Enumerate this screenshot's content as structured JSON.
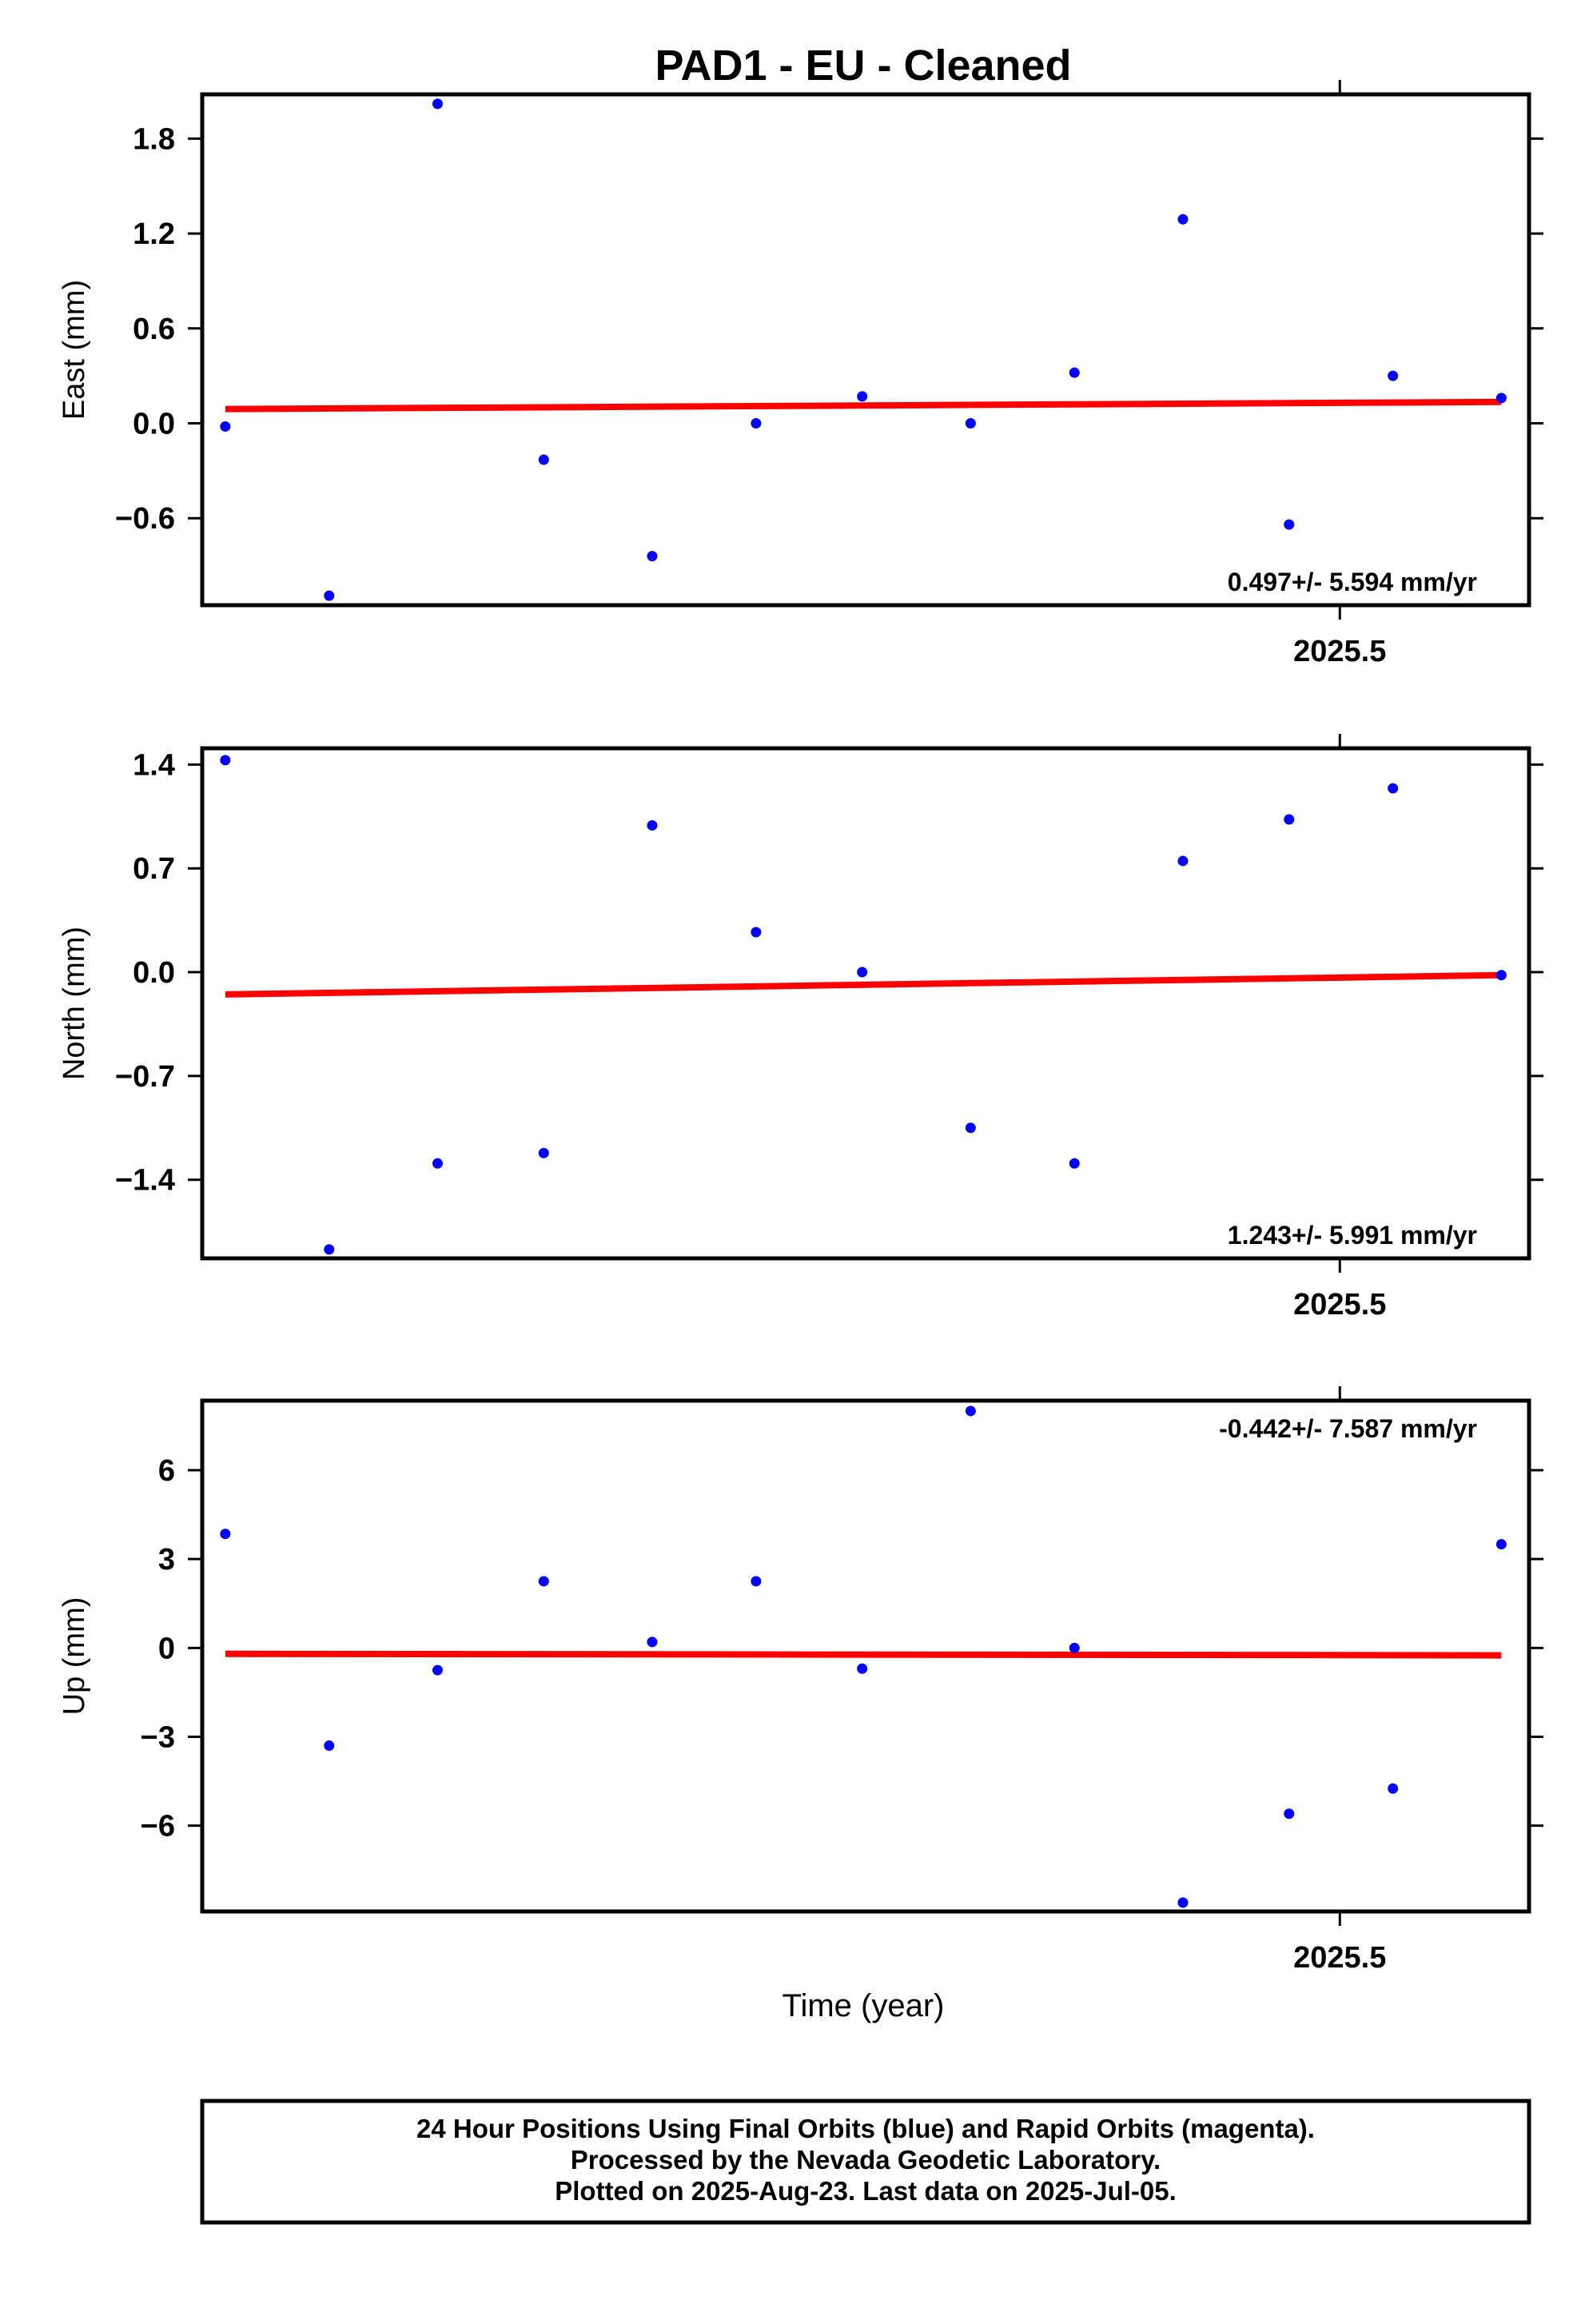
{
  "title": "PAD1  - EU - Cleaned",
  "x_axis_label": "Time (year)",
  "footer": {
    "line1": "24 Hour Positions Using Final Orbits (blue) and Rapid Orbits (magenta).",
    "line2": "Processed by the Nevada Geodetic Laboratory.",
    "line3": "Plotted on 2025-Aug-23. Last data on 2025-Jul-05."
  },
  "colors": {
    "points": "#0000ff",
    "trend": "#ff0000",
    "frame": "#000000"
  },
  "chart_data": [
    {
      "type": "scatter",
      "ylabel": "East (mm)",
      "xlim": [
        2025.4507,
        2025.5082
      ],
      "ylim": [
        -1.15,
        2.08
      ],
      "yticks": [
        "1.8",
        "1.2",
        "0.6",
        "0.0",
        "−0.6"
      ],
      "xticks": [
        "2025.5"
      ],
      "rate_label": "0.497+/- 5.594 mm/yr",
      "rate_position": "bottom-right",
      "x": [
        2025.4517,
        2025.4562,
        2025.4609,
        2025.4655,
        2025.4702,
        2025.4747,
        2025.4793,
        2025.484,
        2025.4885,
        2025.4932,
        2025.4978,
        2025.5023,
        2025.507
      ],
      "values": [
        -0.02,
        -1.09,
        2.02,
        -0.23,
        -0.84,
        0.0,
        0.17,
        0.0,
        0.32,
        1.29,
        -0.64,
        0.3,
        0.16
      ],
      "trend": {
        "x": [
          2025.4517,
          2025.507
        ],
        "y": [
          0.09,
          0.135
        ]
      }
    },
    {
      "type": "scatter",
      "ylabel": "North (mm)",
      "xlim": [
        2025.4507,
        2025.5082
      ],
      "ylim": [
        -1.93,
        1.51
      ],
      "yticks": [
        "1.4",
        "0.7",
        "0.0",
        "−0.7",
        "−1.4"
      ],
      "xticks": [
        "2025.5"
      ],
      "rate_label": "1.243+/- 5.991 mm/yr",
      "rate_position": "bottom-right",
      "x": [
        2025.4517,
        2025.4562,
        2025.4609,
        2025.4655,
        2025.4702,
        2025.4747,
        2025.4793,
        2025.484,
        2025.4885,
        2025.4932,
        2025.4978,
        2025.5023,
        2025.507
      ],
      "values": [
        1.43,
        -1.87,
        -1.29,
        -1.22,
        0.99,
        0.27,
        0.0,
        -1.05,
        -1.29,
        0.75,
        1.03,
        1.24,
        -0.02
      ],
      "trend": {
        "x": [
          2025.4517,
          2025.507
        ],
        "y": [
          -0.15,
          -0.02
        ]
      }
    },
    {
      "type": "scatter",
      "ylabel": "Up (mm)",
      "xlim": [
        2025.4507,
        2025.5082
      ],
      "ylim": [
        -8.9,
        8.35
      ],
      "yticks": [
        "6",
        "3",
        "0",
        "−3",
        "−6"
      ],
      "xticks": [
        "2025.5"
      ],
      "rate_label": "-0.442+/- 7.587 mm/yr",
      "rate_position": "top-right",
      "x": [
        2025.4517,
        2025.4562,
        2025.4609,
        2025.4655,
        2025.4702,
        2025.4747,
        2025.4793,
        2025.484,
        2025.4885,
        2025.4932,
        2025.4978,
        2025.5023,
        2025.507
      ],
      "values": [
        3.85,
        -3.3,
        -0.75,
        2.25,
        0.2,
        2.25,
        -0.7,
        8.0,
        0.0,
        -8.6,
        -5.6,
        -4.75,
        3.5
      ],
      "trend": {
        "x": [
          2025.4517,
          2025.507
        ],
        "y": [
          -0.2,
          -0.25
        ]
      }
    }
  ]
}
